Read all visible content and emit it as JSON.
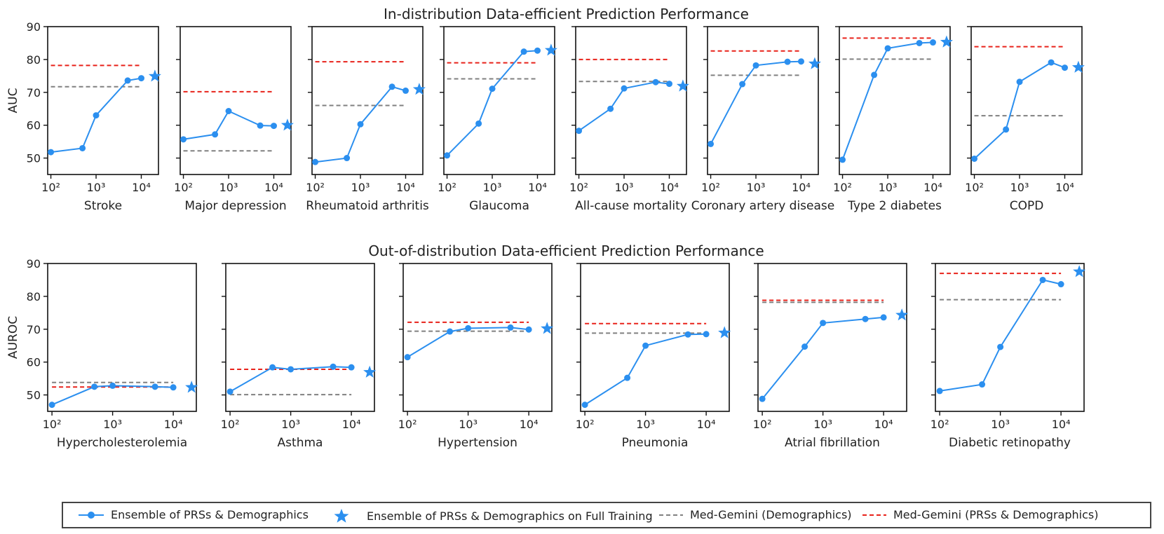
{
  "figure": {
    "row1_title": "In-distribution Data-efficient Prediction Performance",
    "row2_title": "Out-of-distribution Data-efficient Prediction Performance",
    "row1_ylabel": "AUC",
    "row2_ylabel": "AUROC",
    "y_ticks": [
      "50",
      "60",
      "70",
      "80",
      "90"
    ],
    "x_ticks": [
      "10²",
      "10³",
      "10⁴"
    ]
  },
  "legend": {
    "ensemble": "Ensemble of PRSs & Demographics",
    "ensemble_full": "Ensemble of PRSs & Demographics on Full Training",
    "gemini_demo": "Med-Gemini (Demographics)",
    "gemini_prs": "Med-Gemini (PRSs & Demographics)"
  },
  "colors": {
    "ensemble": "#2B8FEF",
    "gemini_demo": "#808080",
    "gemini_prs": "#E8221A",
    "axis": "#111111"
  },
  "chart_data": [
    {
      "type": "line",
      "row": 1,
      "title": "",
      "xlabel": "Stroke",
      "ylabel": "AUC",
      "x_scale": "log",
      "x": [
        100,
        500,
        1000,
        5000,
        10000
      ],
      "ylim": [
        45,
        90
      ],
      "series": [
        {
          "name": "Ensemble of PRSs & Demographics",
          "values": [
            51.8,
            53.0,
            63.0,
            73.6,
            74.3
          ]
        }
      ],
      "full_training": {
        "x": 20000,
        "value": 74.9
      },
      "med_gemini_demographics": 71.7,
      "med_gemini_prs_demographics": 78.2
    },
    {
      "type": "line",
      "row": 1,
      "title": "",
      "xlabel": "Major depression",
      "ylabel": "AUC",
      "x_scale": "log",
      "x": [
        100,
        500,
        1000,
        5000,
        10000
      ],
      "ylim": [
        45,
        90
      ],
      "series": [
        {
          "name": "Ensemble of PRSs & Demographics",
          "values": [
            55.7,
            57.2,
            64.3,
            59.9,
            59.8
          ]
        }
      ],
      "full_training": {
        "x": 20000,
        "value": 60.0
      },
      "med_gemini_demographics": 52.2,
      "med_gemini_prs_demographics": 70.2
    },
    {
      "type": "line",
      "row": 1,
      "title": "",
      "xlabel": "Rheumatoid arthritis",
      "ylabel": "AUC",
      "x_scale": "log",
      "x": [
        100,
        500,
        1000,
        5000,
        10000
      ],
      "ylim": [
        45,
        90
      ],
      "series": [
        {
          "name": "Ensemble of PRSs & Demographics",
          "values": [
            48.8,
            50.0,
            60.3,
            71.7,
            70.5
          ]
        }
      ],
      "full_training": {
        "x": 20000,
        "value": 70.9
      },
      "med_gemini_demographics": 66.0,
      "med_gemini_prs_demographics": 79.3
    },
    {
      "type": "line",
      "row": 1,
      "title": "",
      "xlabel": "Glaucoma",
      "ylabel": "AUC",
      "x_scale": "log",
      "x": [
        100,
        500,
        1000,
        5000,
        10000
      ],
      "ylim": [
        45,
        90
      ],
      "series": [
        {
          "name": "Ensemble of PRSs & Demographics",
          "values": [
            50.8,
            60.5,
            71.1,
            82.4,
            82.7
          ]
        }
      ],
      "full_training": {
        "x": 20000,
        "value": 82.8
      },
      "med_gemini_demographics": 74.1,
      "med_gemini_prs_demographics": 79.0
    },
    {
      "type": "line",
      "row": 1,
      "title": "",
      "xlabel": "All-cause mortality",
      "ylabel": "AUC",
      "x_scale": "log",
      "x": [
        100,
        500,
        1000,
        5000,
        10000
      ],
      "ylim": [
        45,
        90
      ],
      "series": [
        {
          "name": "Ensemble of PRSs & Demographics",
          "values": [
            58.3,
            65.0,
            71.2,
            73.1,
            72.6
          ]
        }
      ],
      "full_training": {
        "x": 20000,
        "value": 71.9
      },
      "med_gemini_demographics": 73.3,
      "med_gemini_prs_demographics": 80.0
    },
    {
      "type": "line",
      "row": 1,
      "title": "",
      "xlabel": "Coronary artery disease",
      "ylabel": "AUC",
      "x_scale": "log",
      "x": [
        100,
        500,
        1000,
        5000,
        10000
      ],
      "ylim": [
        45,
        90
      ],
      "series": [
        {
          "name": "Ensemble of PRSs & Demographics",
          "values": [
            54.3,
            72.5,
            78.2,
            79.3,
            79.4
          ]
        }
      ],
      "full_training": {
        "x": 20000,
        "value": 78.7
      },
      "med_gemini_demographics": 75.2,
      "med_gemini_prs_demographics": 82.6
    },
    {
      "type": "line",
      "row": 1,
      "title": "",
      "xlabel": "Type 2 diabetes",
      "ylabel": "AUC",
      "x_scale": "log",
      "x": [
        100,
        500,
        1000,
        5000,
        10000
      ],
      "ylim": [
        45,
        90
      ],
      "series": [
        {
          "name": "Ensemble of PRSs & Demographics",
          "values": [
            49.5,
            75.3,
            83.4,
            85.0,
            85.2
          ]
        }
      ],
      "full_training": {
        "x": 20000,
        "value": 85.3
      },
      "med_gemini_demographics": 80.1,
      "med_gemini_prs_demographics": 86.5
    },
    {
      "type": "line",
      "row": 1,
      "title": "",
      "xlabel": "COPD",
      "ylabel": "AUC",
      "x_scale": "log",
      "x": [
        100,
        500,
        1000,
        5000,
        10000
      ],
      "ylim": [
        45,
        90
      ],
      "series": [
        {
          "name": "Ensemble of PRSs & Demographics",
          "values": [
            49.8,
            58.7,
            73.2,
            79.1,
            77.5
          ]
        }
      ],
      "full_training": {
        "x": 20000,
        "value": 77.6
      },
      "med_gemini_demographics": 62.9,
      "med_gemini_prs_demographics": 83.9
    },
    {
      "type": "line",
      "row": 2,
      "title": "",
      "xlabel": "Hypercholesterolemia",
      "ylabel": "AUROC",
      "x_scale": "log",
      "x": [
        100,
        500,
        1000,
        5000,
        10000
      ],
      "ylim": [
        45,
        90
      ],
      "series": [
        {
          "name": "Ensemble of PRSs & Demographics",
          "values": [
            47.0,
            52.5,
            52.8,
            52.5,
            52.3
          ]
        }
      ],
      "full_training": {
        "x": 20000,
        "value": 52.3
      },
      "med_gemini_demographics": 53.8,
      "med_gemini_prs_demographics": 52.4
    },
    {
      "type": "line",
      "row": 2,
      "title": "",
      "xlabel": "Asthma",
      "ylabel": "AUROC",
      "x_scale": "log",
      "x": [
        100,
        500,
        1000,
        5000,
        10000
      ],
      "ylim": [
        45,
        90
      ],
      "series": [
        {
          "name": "Ensemble of PRSs & Demographics",
          "values": [
            51.0,
            58.4,
            57.8,
            58.6,
            58.4
          ]
        }
      ],
      "full_training": {
        "x": 20000,
        "value": 56.9
      },
      "med_gemini_demographics": 50.1,
      "med_gemini_prs_demographics": 57.8
    },
    {
      "type": "line",
      "row": 2,
      "title": "",
      "xlabel": "Hypertension",
      "ylabel": "AUROC",
      "x_scale": "log",
      "x": [
        100,
        500,
        1000,
        5000,
        10000
      ],
      "ylim": [
        45,
        90
      ],
      "series": [
        {
          "name": "Ensemble of PRSs & Demographics",
          "values": [
            61.5,
            69.3,
            70.3,
            70.5,
            69.9
          ]
        }
      ],
      "full_training": {
        "x": 20000,
        "value": 70.2
      },
      "med_gemini_demographics": 69.4,
      "med_gemini_prs_demographics": 72.1
    },
    {
      "type": "line",
      "row": 2,
      "title": "",
      "xlabel": "Pneumonia",
      "ylabel": "AUROC",
      "x_scale": "log",
      "x": [
        100,
        500,
        1000,
        5000,
        10000
      ],
      "ylim": [
        45,
        90
      ],
      "series": [
        {
          "name": "Ensemble of PRSs & Demographics",
          "values": [
            47.0,
            55.2,
            65.0,
            68.4,
            68.5
          ]
        }
      ],
      "full_training": {
        "x": 20000,
        "value": 68.9
      },
      "med_gemini_demographics": 68.8,
      "med_gemini_prs_demographics": 71.7
    },
    {
      "type": "line",
      "row": 2,
      "title": "",
      "xlabel": "Atrial fibrillation",
      "ylabel": "AUROC",
      "x_scale": "log",
      "x": [
        100,
        500,
        1000,
        5000,
        10000
      ],
      "ylim": [
        45,
        90
      ],
      "series": [
        {
          "name": "Ensemble of PRSs & Demographics",
          "values": [
            48.8,
            64.7,
            71.9,
            73.1,
            73.6
          ]
        }
      ],
      "full_training": {
        "x": 20000,
        "value": 74.3
      },
      "med_gemini_demographics": 78.2,
      "med_gemini_prs_demographics": 78.8
    },
    {
      "type": "line",
      "row": 2,
      "title": "",
      "xlabel": "Diabetic retinopathy",
      "ylabel": "AUROC",
      "x_scale": "log",
      "x": [
        100,
        500,
        1000,
        5000,
        10000
      ],
      "ylim": [
        45,
        90
      ],
      "series": [
        {
          "name": "Ensemble of PRSs & Demographics",
          "values": [
            51.2,
            53.2,
            64.6,
            85.0,
            83.7
          ]
        }
      ],
      "full_training": {
        "x": 20000,
        "value": 87.5
      },
      "med_gemini_demographics": 79.0,
      "med_gemini_prs_demographics": 87.0
    }
  ]
}
